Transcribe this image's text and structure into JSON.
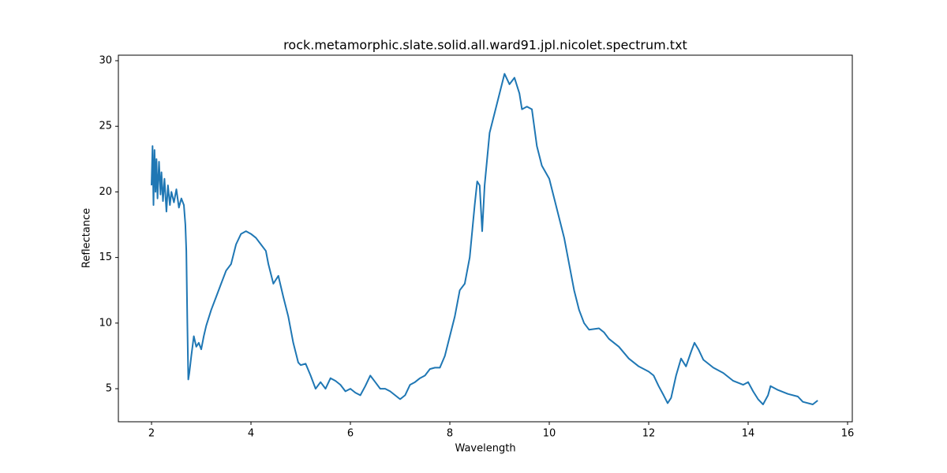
{
  "chart_data": {
    "type": "line",
    "title": "rock.metamorphic.slate.solid.all.ward91.jpl.nicolet.spectrum.txt",
    "x_label": "Wavelength",
    "y_label": "Reflectance",
    "xlim": [
      1.333,
      16.095
    ],
    "ylim": [
      2.48,
      30.42
    ],
    "xticks": [
      2,
      4,
      6,
      8,
      10,
      12,
      14,
      16
    ],
    "yticks": [
      5,
      10,
      15,
      20,
      25,
      30
    ],
    "series": [
      {
        "color": "#1f77b4",
        "x": [
          2.0,
          2.02,
          2.04,
          2.06,
          2.08,
          2.1,
          2.12,
          2.15,
          2.18,
          2.2,
          2.23,
          2.26,
          2.3,
          2.33,
          2.37,
          2.4,
          2.45,
          2.5,
          2.55,
          2.6,
          2.65,
          2.68,
          2.7,
          2.72,
          2.74,
          2.76,
          2.8,
          2.85,
          2.9,
          2.95,
          3.0,
          3.05,
          3.1,
          3.2,
          3.3,
          3.4,
          3.5,
          3.6,
          3.7,
          3.8,
          3.9,
          4.0,
          4.1,
          4.2,
          4.3,
          4.35,
          4.45,
          4.55,
          4.65,
          4.75,
          4.85,
          4.95,
          5.0,
          5.1,
          5.2,
          5.3,
          5.4,
          5.5,
          5.6,
          5.7,
          5.8,
          5.9,
          6.0,
          6.1,
          6.2,
          6.3,
          6.4,
          6.5,
          6.6,
          6.7,
          6.8,
          6.9,
          7.0,
          7.1,
          7.2,
          7.3,
          7.4,
          7.5,
          7.6,
          7.7,
          7.8,
          7.9,
          8.0,
          8.1,
          8.2,
          8.3,
          8.4,
          8.5,
          8.55,
          8.6,
          8.65,
          8.7,
          8.8,
          8.9,
          9.0,
          9.1,
          9.2,
          9.3,
          9.4,
          9.45,
          9.55,
          9.65,
          9.75,
          9.85,
          10.0,
          10.1,
          10.2,
          10.3,
          10.4,
          10.5,
          10.6,
          10.7,
          10.8,
          11.0,
          11.1,
          11.2,
          11.4,
          11.6,
          11.8,
          12.0,
          12.1,
          12.2,
          12.3,
          12.38,
          12.45,
          12.55,
          12.65,
          12.75,
          12.85,
          12.92,
          13.0,
          13.1,
          13.3,
          13.5,
          13.7,
          13.9,
          14.0,
          14.1,
          14.2,
          14.3,
          14.4,
          14.45,
          14.6,
          14.8,
          15.0,
          15.1,
          15.3,
          15.4
        ],
        "values": [
          20.5,
          23.5,
          19.0,
          23.2,
          20.0,
          22.5,
          19.5,
          22.3,
          19.8,
          21.5,
          19.3,
          21.0,
          18.5,
          20.5,
          19.0,
          20.0,
          19.2,
          20.2,
          18.8,
          19.5,
          19.0,
          17.5,
          15.5,
          10.0,
          5.7,
          6.2,
          7.5,
          9.0,
          8.2,
          8.5,
          8.0,
          9.0,
          9.8,
          11.0,
          12.0,
          13.0,
          14.0,
          14.5,
          16.0,
          16.8,
          17.0,
          16.8,
          16.5,
          16.0,
          15.5,
          14.5,
          13.0,
          13.6,
          12.0,
          10.5,
          8.5,
          7.0,
          6.8,
          6.9,
          6.0,
          5.0,
          5.5,
          5.0,
          5.8,
          5.6,
          5.3,
          4.8,
          5.0,
          4.7,
          4.5,
          5.2,
          6.0,
          5.5,
          5.0,
          5.0,
          4.8,
          4.5,
          4.2,
          4.5,
          5.3,
          5.5,
          5.8,
          6.0,
          6.5,
          6.6,
          6.6,
          7.5,
          9.0,
          10.5,
          12.5,
          13.0,
          15.0,
          19.0,
          20.8,
          20.5,
          17.0,
          20.5,
          24.5,
          26.0,
          27.5,
          29.0,
          28.2,
          28.7,
          27.5,
          26.3,
          26.5,
          26.3,
          23.5,
          22.0,
          21.0,
          19.5,
          18.0,
          16.5,
          14.5,
          12.5,
          11.0,
          10.0,
          9.5,
          9.6,
          9.3,
          8.8,
          8.2,
          7.3,
          6.7,
          6.3,
          6.0,
          5.2,
          4.5,
          3.9,
          4.3,
          6.0,
          7.3,
          6.7,
          7.8,
          8.5,
          8.0,
          7.2,
          6.6,
          6.2,
          5.6,
          5.3,
          5.5,
          4.8,
          4.2,
          3.8,
          4.5,
          5.2,
          4.9,
          4.6,
          4.4,
          4.0,
          3.8,
          4.1
        ]
      }
    ]
  }
}
